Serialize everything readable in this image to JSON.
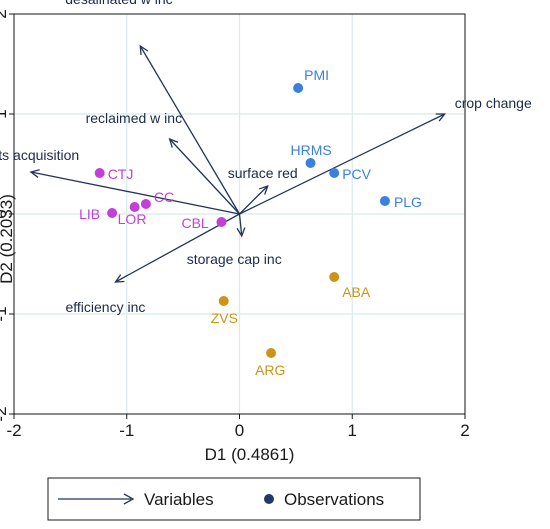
{
  "chart_data": {
    "type": "scatter",
    "subtype": "biplot",
    "xlabel": "D1 (0.4861)",
    "ylabel": "D2 (0.2033)",
    "xlim": [
      -2,
      2
    ],
    "ylim": [
      -2,
      2
    ],
    "xticks": [
      "-2",
      "-1",
      "0",
      "1",
      "2"
    ],
    "yticks": [
      "-2",
      "-1",
      "0",
      "1",
      "2"
    ],
    "grid": true,
    "legend": {
      "placement": "bottom",
      "entries": [
        {
          "label": "Variables",
          "marker": "arrow"
        },
        {
          "label": "Observations",
          "marker": "dot"
        }
      ]
    },
    "variables": [
      {
        "name": "desalinated w inc",
        "x": -0.88,
        "y": 1.68
      },
      {
        "name": "reclaimed w inc",
        "x": -0.62,
        "y": 0.75
      },
      {
        "name": "w rights acquisition",
        "x": -1.85,
        "y": 0.42
      },
      {
        "name": "surface red",
        "x": 0.25,
        "y": 0.28
      },
      {
        "name": "crop change",
        "x": 1.82,
        "y": 1.0
      },
      {
        "name": "storage cap inc",
        "x": 0.02,
        "y": -0.22
      },
      {
        "name": "efficiency inc",
        "x": -1.1,
        "y": -0.68
      }
    ],
    "observations": [
      {
        "name": "PMI",
        "x": 0.52,
        "y": 1.26,
        "group": "blue"
      },
      {
        "name": "HRMS",
        "x": 0.63,
        "y": 0.51,
        "group": "blue"
      },
      {
        "name": "PCV",
        "x": 0.84,
        "y": 0.41,
        "group": "blue"
      },
      {
        "name": "PLG",
        "x": 1.29,
        "y": 0.13,
        "group": "blue"
      },
      {
        "name": "CTJ",
        "x": -1.24,
        "y": 0.41,
        "group": "magenta"
      },
      {
        "name": "CC",
        "x": -0.83,
        "y": 0.1,
        "group": "magenta"
      },
      {
        "name": "LOR",
        "x": -0.93,
        "y": 0.07,
        "group": "magenta"
      },
      {
        "name": "LIB",
        "x": -1.13,
        "y": 0.01,
        "group": "magenta"
      },
      {
        "name": "CBL",
        "x": -0.16,
        "y": -0.08,
        "group": "magenta"
      },
      {
        "name": "ABA",
        "x": 0.84,
        "y": -0.63,
        "group": "orange"
      },
      {
        "name": "ZVS",
        "x": -0.14,
        "y": -0.87,
        "group": "orange"
      },
      {
        "name": "ARG",
        "x": 0.28,
        "y": -1.39,
        "group": "orange"
      }
    ],
    "colors": {
      "blue": "#3a80dc",
      "magenta": "#c33fd7",
      "orange": "#cc9418",
      "arrow": "#24345a",
      "grid": "#d8ebeb",
      "legend_dot": "#1f3a6a"
    }
  }
}
